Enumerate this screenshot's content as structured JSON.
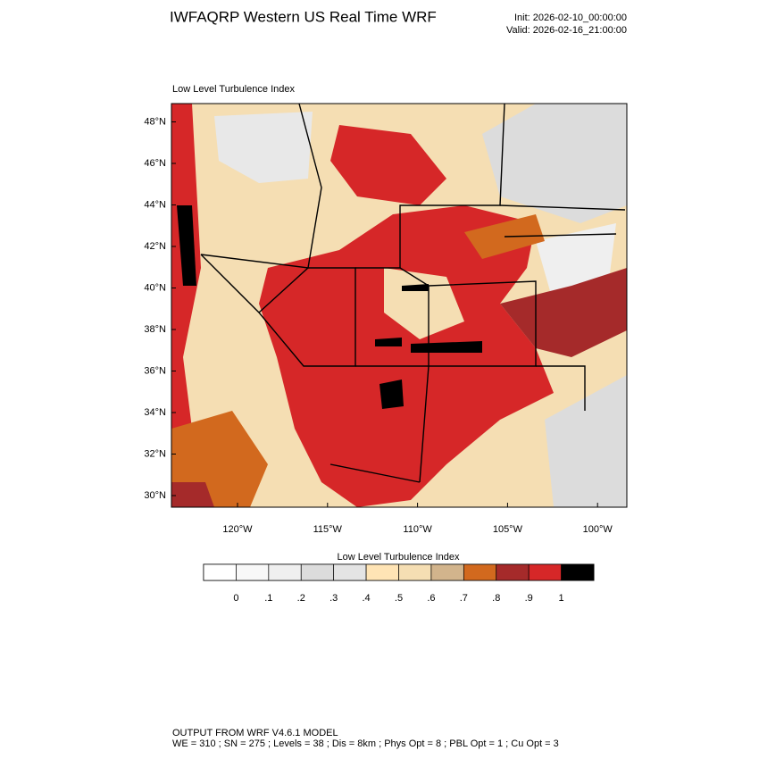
{
  "header": {
    "title": "IWFAQRP Western US Real Time WRF",
    "init": "Init: 2026-02-10_00:00:00",
    "valid": "Valid: 2026-02-16_21:00:00"
  },
  "map": {
    "subtitle": "Low Level Turbulence Index",
    "lat_labels": [
      "30°N",
      "32°N",
      "34°N",
      "36°N",
      "38°N",
      "40°N",
      "42°N",
      "44°N",
      "46°N",
      "48°N"
    ],
    "lon_labels": [
      "120°W",
      "115°W",
      "110°W",
      "105°W",
      "100°W"
    ]
  },
  "colorbar": {
    "title": "Low Level Turbulence Index",
    "colors": [
      "#ffffff",
      "#f8f8f8",
      "#efefef",
      "#dcdcdc",
      "#e4e4e4",
      "#ffe4b5",
      "#f5deb3",
      "#d2b48c",
      "#d2691e",
      "#a52a2a",
      "#d62728",
      "#000000"
    ],
    "ticks": [
      0,
      {
        "value": 0.1,
        "label": ".1"
      },
      {
        "value": 0.2,
        "label": ".2"
      },
      {
        "value": 0.3,
        "label": ".3"
      },
      {
        "value": 0.4,
        "label": ".4"
      },
      {
        "value": 0.5,
        "label": ".5"
      },
      {
        "value": 0.6,
        "label": ".6"
      },
      {
        "value": 0.7,
        "label": ".7"
      },
      {
        "value": 0.8,
        "label": ".8"
      },
      {
        "value": 0.9,
        "label": ".9"
      },
      1
    ]
  },
  "footer": {
    "line1": "OUTPUT FROM WRF V4.6.1 MODEL",
    "line2": "WE = 310 ; SN = 275 ; Levels = 38 ; Dis = 8km ; Phys Opt = 8 ; PBL Opt = 1 ; Cu Opt = 3"
  }
}
